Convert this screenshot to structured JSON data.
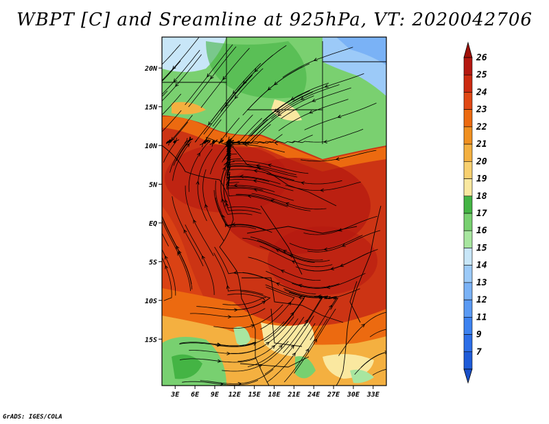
{
  "title": "WBPT [C] and Sreamline at 925hPa, VT: 2020042706",
  "credit": "GrADS: IGES/COLA",
  "map": {
    "lat_range": [
      -21,
      24
    ],
    "lon_range": [
      1,
      35
    ],
    "lat_ticks": [
      {
        "value": 20,
        "label": "20N"
      },
      {
        "value": 15,
        "label": "15N"
      },
      {
        "value": 10,
        "label": "10N"
      },
      {
        "value": 5,
        "label": "5N"
      },
      {
        "value": 0,
        "label": "EQ"
      },
      {
        "value": -5,
        "label": "5S"
      },
      {
        "value": -10,
        "label": "10S"
      },
      {
        "value": -15,
        "label": "15S"
      }
    ],
    "lon_ticks": [
      {
        "value": 3,
        "label": "3E"
      },
      {
        "value": 6,
        "label": "6E"
      },
      {
        "value": 9,
        "label": "9E"
      },
      {
        "value": 12,
        "label": "12E"
      },
      {
        "value": 15,
        "label": "15E"
      },
      {
        "value": 18,
        "label": "18E"
      },
      {
        "value": 21,
        "label": "21E"
      },
      {
        "value": 24,
        "label": "24E"
      },
      {
        "value": 27,
        "label": "27E"
      },
      {
        "value": 30,
        "label": "30E"
      },
      {
        "value": 33,
        "label": "33E"
      }
    ]
  },
  "colorbar": {
    "labels": [
      "7",
      "9",
      "11",
      "12",
      "13",
      "14",
      "15",
      "16",
      "17",
      "18",
      "19",
      "20",
      "21",
      "22",
      "23",
      "24",
      "25",
      "26"
    ],
    "colors": [
      "#1e5bd8",
      "#2c6ee8",
      "#3c82f0",
      "#5a9af4",
      "#7ab2f6",
      "#9ccaf8",
      "#c8e6f8",
      "#a8e6a0",
      "#78d070",
      "#44b444",
      "#fae8a0",
      "#f8d070",
      "#f4b040",
      "#f09020",
      "#ec6a10",
      "#e04814",
      "#cc2a10",
      "#b41810"
    ],
    "under_color": "#1a50c8",
    "over_color": "#a01008"
  }
}
